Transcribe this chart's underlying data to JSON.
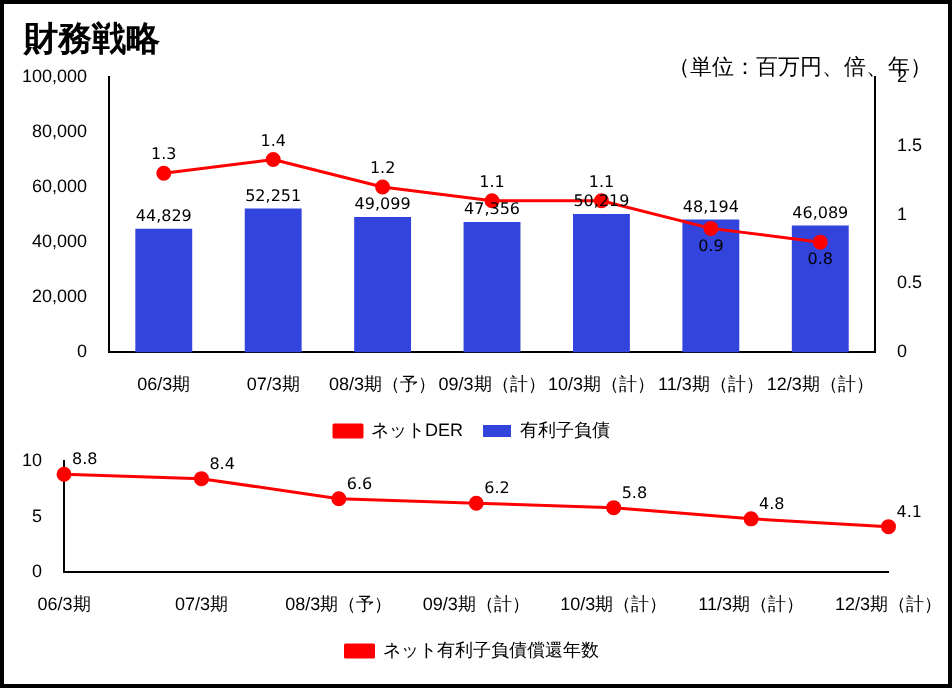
{
  "chart_data": [
    {
      "type": "bar",
      "title": "財務戦略",
      "annotations": [
        "（単位：百万円、倍、年）"
      ],
      "categories": [
        "06/3期",
        "07/3期",
        "08/3期（予）",
        "09/3期（計）",
        "10/3期（計）",
        "11/3期（計）",
        "12/3期（計）"
      ],
      "series": [
        {
          "name": "有利子負債",
          "color": "#3344dd",
          "values": [
            44829,
            52251,
            49099,
            47356,
            50219,
            48194,
            46089
          ],
          "value_labels": [
            "44,829",
            "52,251",
            "49,099",
            "47,356",
            "50,219",
            "48,194",
            "46,089"
          ]
        },
        {
          "name": "ネットDER",
          "type": "line",
          "axis": "y2",
          "color": "#ff0000",
          "values": [
            1.3,
            1.4,
            1.2,
            1.1,
            1.1,
            0.9,
            0.8
          ],
          "value_labels": [
            "1.3",
            "1.4",
            "1.2",
            "1.1",
            "1.1",
            "0.9",
            "0.8"
          ]
        }
      ],
      "ylim": [
        0,
        100000
      ],
      "yticks": [
        0,
        {
          "value": 20000,
          "label": "20,000"
        },
        {
          "value": 40000,
          "label": "40,000"
        },
        {
          "value": 60000,
          "label": "60,000"
        },
        {
          "value": 80000,
          "label": "80,000"
        },
        {
          "value": 100000,
          "label": "100,000"
        }
      ],
      "y2lim": [
        0,
        2
      ],
      "y2ticks": [
        0,
        0.5,
        1,
        1.5,
        2
      ],
      "legend": "bottom",
      "grid": false,
      "marker": "circle"
    },
    {
      "type": "line",
      "categories": [
        "06/3期",
        "07/3期",
        "08/3期（予）",
        "09/3期（計）",
        "10/3期（計）",
        "11/3期（計）",
        "12/3期（計）"
      ],
      "series": [
        {
          "name": "ネット有利子負債償還年数",
          "color": "#ff0000",
          "values": [
            8.8,
            8.4,
            6.6,
            6.2,
            5.8,
            4.8,
            4.1
          ]
        }
      ],
      "ylim": [
        0,
        10
      ],
      "yticks": [
        0,
        5,
        10
      ],
      "data_labels": true,
      "legend": "bottom",
      "grid": false,
      "marker": "circle"
    }
  ]
}
